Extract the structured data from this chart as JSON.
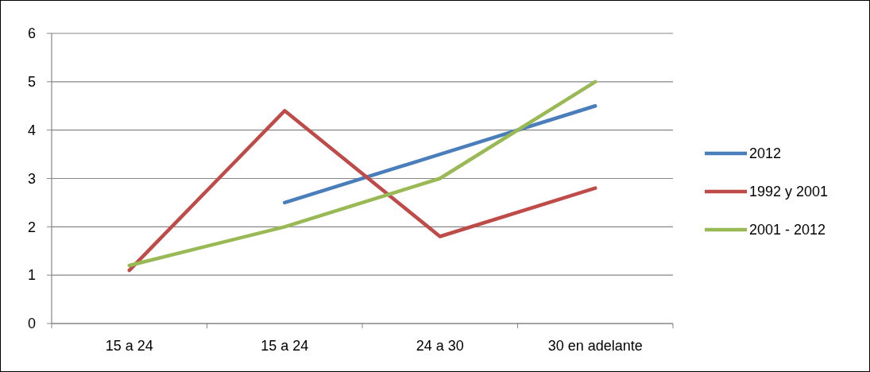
{
  "chart_data": {
    "type": "line",
    "categories": [
      "15 a 24",
      "15 a 24",
      "24 a 30",
      "30 en adelante"
    ],
    "series": [
      {
        "name": "2012",
        "color": "#4a7ebb",
        "values": [
          null,
          2.5,
          3.5,
          4.5
        ]
      },
      {
        "name": "1992 y 2001",
        "color": "#be4b48",
        "values": [
          1.1,
          4.4,
          1.8,
          2.8
        ]
      },
      {
        "name": "2001 - 2012",
        "color": "#98b954",
        "values": [
          1.2,
          2.0,
          3.0,
          5.0
        ]
      }
    ],
    "ylim": [
      0,
      6
    ],
    "yticks": [
      0,
      1,
      2,
      3,
      4,
      5,
      6
    ],
    "grid": "y",
    "legend": "right",
    "marker": "none",
    "line_style": "solid"
  }
}
